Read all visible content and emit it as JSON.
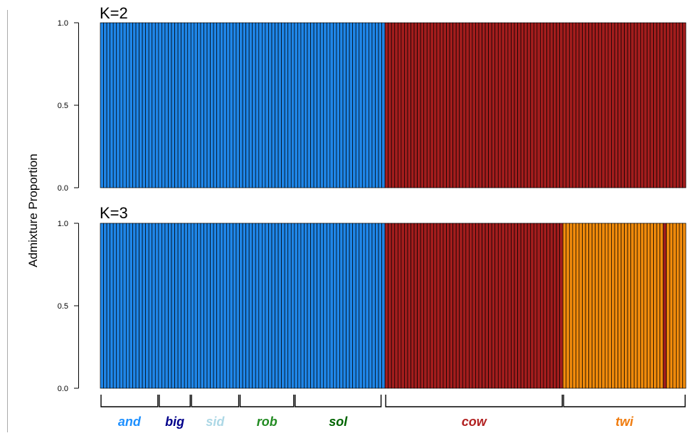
{
  "chart_data": {
    "type": "bar",
    "subtype": "stacked-admixture",
    "ylabel": "Admixture Proportion",
    "ylim": [
      0,
      1
    ],
    "yticks": [
      "0.0",
      "0.5",
      "1.0"
    ],
    "component_colors": [
      "#1f86e8",
      "#a31d1d",
      "#f08a0b"
    ],
    "panels": [
      {
        "title": "K=2",
        "n_components": 2,
        "segments": [
          {
            "start": 0,
            "count": 88,
            "component": 0,
            "proportions": [
              1.0,
              0.0
            ]
          },
          {
            "start": 88,
            "count": 93,
            "component": 1,
            "proportions": [
              0.0,
              1.0
            ]
          }
        ]
      },
      {
        "title": "K=3",
        "n_components": 3,
        "segments": [
          {
            "start": 0,
            "count": 88,
            "component": 0,
            "proportions": [
              1.0,
              0.0,
              0.0
            ]
          },
          {
            "start": 88,
            "count": 55,
            "component": 1,
            "proportions": [
              0.0,
              1.0,
              0.0
            ]
          },
          {
            "start": 143,
            "count": 31,
            "component": 2,
            "proportions": [
              0.0,
              0.0,
              1.0
            ]
          },
          {
            "start": 174,
            "count": 1,
            "component": 1,
            "proportions": [
              0.0,
              1.0,
              0.0
            ]
          },
          {
            "start": 175,
            "count": 6,
            "component": 2,
            "proportions": [
              0.0,
              0.0,
              1.0
            ]
          }
        ]
      }
    ],
    "n_individuals": 181,
    "populations": [
      {
        "label": "and",
        "start": 0,
        "end": 18,
        "color": "#1e90ff"
      },
      {
        "label": "big",
        "start": 18,
        "end": 28,
        "color": "#00008b"
      },
      {
        "label": "sid",
        "start": 28,
        "end": 43,
        "color": "#add8e6"
      },
      {
        "label": "rob",
        "start": 43,
        "end": 60,
        "color": "#228b22"
      },
      {
        "label": "sol",
        "start": 60,
        "end": 87,
        "color": "#006400"
      },
      {
        "label": "cow",
        "start": 88,
        "end": 143,
        "color": "#b22222"
      },
      {
        "label": "twi",
        "start": 143,
        "end": 181,
        "color": "#f07c0f"
      }
    ]
  }
}
